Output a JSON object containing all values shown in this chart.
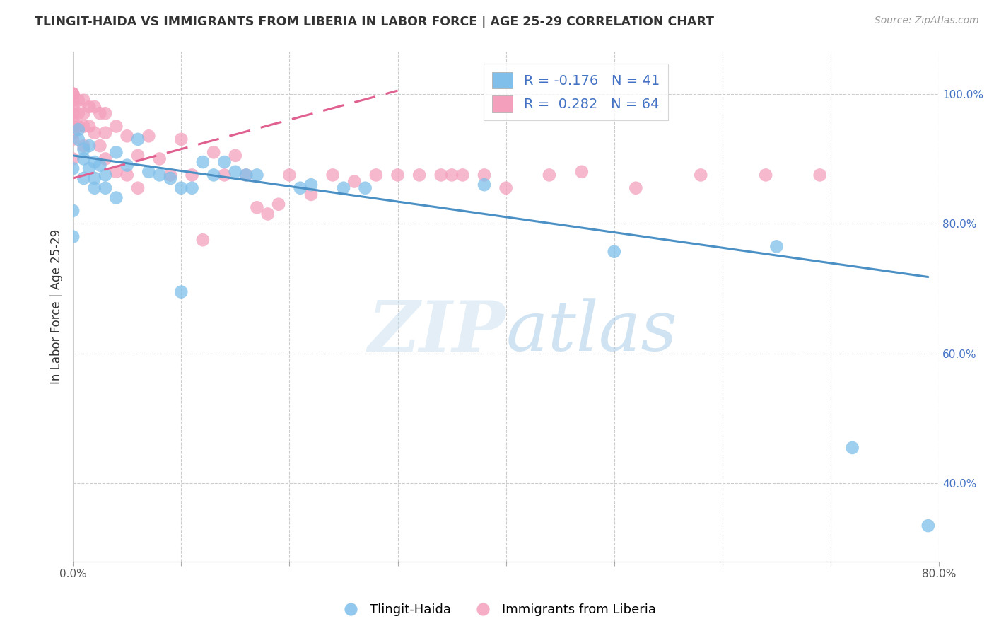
{
  "title": "TLINGIT-HAIDA VS IMMIGRANTS FROM LIBERIA IN LABOR FORCE | AGE 25-29 CORRELATION CHART",
  "source": "Source: ZipAtlas.com",
  "ylabel": "In Labor Force | Age 25-29",
  "watermark": "ZIPatlas",
  "legend_blue_r": "-0.176",
  "legend_blue_n": "41",
  "legend_pink_r": "0.282",
  "legend_pink_n": "64",
  "xlim": [
    0.0,
    0.8
  ],
  "ylim": [
    0.28,
    1.065
  ],
  "xtick_vals": [
    0.0,
    0.1,
    0.2,
    0.3,
    0.4,
    0.5,
    0.6,
    0.7,
    0.8
  ],
  "xtick_labels": [
    "0.0%",
    "",
    "",
    "",
    "",
    "",
    "",
    "",
    "80.0%"
  ],
  "ytick_vals": [
    0.4,
    0.6,
    0.8,
    1.0
  ],
  "ytick_labels": [
    "40.0%",
    "60.0%",
    "80.0%",
    "100.0%"
  ],
  "blue_color": "#7fbfea",
  "pink_color": "#f4a0bc",
  "blue_line_color": "#4a90c4",
  "pink_line_color": "#e06090",
  "blue_line_x": [
    0.0,
    0.79
  ],
  "blue_line_y": [
    0.905,
    0.718
  ],
  "pink_line_x": [
    0.0,
    0.3
  ],
  "pink_line_y": [
    0.87,
    1.005
  ],
  "tlingit_x": [
    0.0,
    0.0,
    0.0,
    0.005,
    0.005,
    0.01,
    0.01,
    0.01,
    0.015,
    0.015,
    0.02,
    0.02,
    0.02,
    0.025,
    0.03,
    0.03,
    0.04,
    0.04,
    0.05,
    0.06,
    0.07,
    0.08,
    0.09,
    0.1,
    0.1,
    0.11,
    0.12,
    0.13,
    0.14,
    0.15,
    0.16,
    0.17,
    0.21,
    0.22,
    0.25,
    0.27,
    0.38,
    0.5,
    0.65,
    0.72,
    0.79
  ],
  "tlingit_y": [
    0.885,
    0.82,
    0.78,
    0.945,
    0.93,
    0.915,
    0.9,
    0.87,
    0.92,
    0.885,
    0.895,
    0.87,
    0.855,
    0.89,
    0.875,
    0.855,
    0.91,
    0.84,
    0.89,
    0.93,
    0.88,
    0.875,
    0.87,
    0.855,
    0.695,
    0.855,
    0.895,
    0.875,
    0.895,
    0.88,
    0.875,
    0.875,
    0.855,
    0.86,
    0.855,
    0.855,
    0.86,
    0.757,
    0.765,
    0.455,
    0.335
  ],
  "liberia_x": [
    0.0,
    0.0,
    0.0,
    0.0,
    0.0,
    0.0,
    0.0,
    0.0,
    0.0,
    0.0,
    0.0,
    0.005,
    0.005,
    0.005,
    0.01,
    0.01,
    0.01,
    0.01,
    0.015,
    0.015,
    0.02,
    0.02,
    0.025,
    0.025,
    0.03,
    0.03,
    0.03,
    0.04,
    0.04,
    0.05,
    0.05,
    0.06,
    0.06,
    0.07,
    0.08,
    0.09,
    0.1,
    0.11,
    0.12,
    0.13,
    0.14,
    0.15,
    0.16,
    0.17,
    0.18,
    0.19,
    0.2,
    0.22,
    0.24,
    0.26,
    0.28,
    0.3,
    0.32,
    0.34,
    0.35,
    0.36,
    0.38,
    0.4,
    0.44,
    0.47,
    0.52,
    0.58,
    0.64,
    0.69
  ],
  "liberia_y": [
    1.0,
    1.0,
    1.0,
    0.99,
    0.98,
    0.97,
    0.96,
    0.95,
    0.94,
    0.93,
    0.9,
    0.99,
    0.97,
    0.95,
    0.99,
    0.97,
    0.95,
    0.92,
    0.98,
    0.95,
    0.98,
    0.94,
    0.97,
    0.92,
    0.97,
    0.94,
    0.9,
    0.95,
    0.88,
    0.935,
    0.875,
    0.905,
    0.855,
    0.935,
    0.9,
    0.875,
    0.93,
    0.875,
    0.775,
    0.91,
    0.875,
    0.905,
    0.875,
    0.825,
    0.815,
    0.83,
    0.875,
    0.845,
    0.875,
    0.865,
    0.875,
    0.875,
    0.875,
    0.875,
    0.875,
    0.875,
    0.875,
    0.855,
    0.875,
    0.88,
    0.855,
    0.875,
    0.875,
    0.875
  ],
  "background_color": "#ffffff",
  "grid_color": "#cccccc"
}
